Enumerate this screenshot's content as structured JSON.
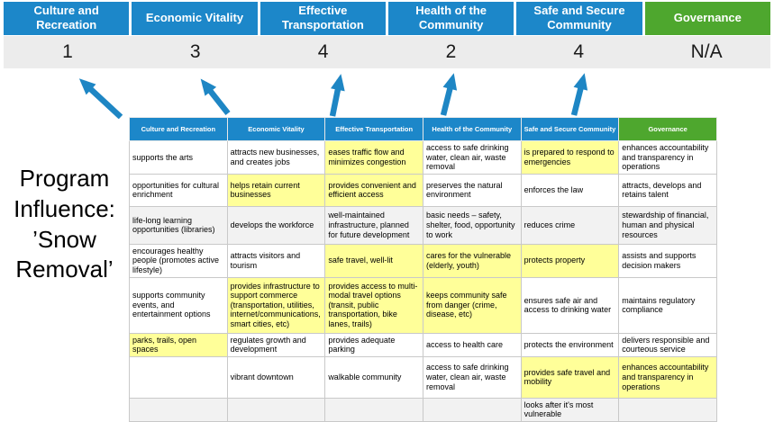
{
  "title": "Program Influence: ’Snow Removal’",
  "colors": {
    "header_blue": "#1c87c9",
    "header_green": "#4ea72e",
    "highlight_yellow": "#ffff99",
    "score_band_gray": "#ececec",
    "arrow_blue": "#1e86c4"
  },
  "scoreboard": {
    "columns": [
      {
        "label": "Culture and Recreation",
        "score": "1",
        "accent": "blue"
      },
      {
        "label": "Economic Vitality",
        "score": "3",
        "accent": "blue"
      },
      {
        "label": "Effective Transportation",
        "score": "4",
        "accent": "blue"
      },
      {
        "label": "Health of the Community",
        "score": "2",
        "accent": "blue"
      },
      {
        "label": "Safe and Secure Community",
        "score": "4",
        "accent": "blue"
      },
      {
        "label": "Governance",
        "score": "N/A",
        "accent": "green"
      }
    ]
  },
  "matrix": {
    "headers": [
      {
        "label": "Culture and Recreation",
        "accent": "blue"
      },
      {
        "label": "Economic Vitality",
        "accent": "blue"
      },
      {
        "label": "Effective Transportation",
        "accent": "blue"
      },
      {
        "label": "Health of the Community",
        "accent": "blue"
      },
      {
        "label": "Safe and Secure Community",
        "accent": "blue"
      },
      {
        "label": "Governance",
        "accent": "green"
      }
    ],
    "rows": [
      {
        "shade": false,
        "cells": [
          {
            "text": "supports the arts",
            "highlight": false
          },
          {
            "text": "attracts new businesses, and creates jobs",
            "highlight": false
          },
          {
            "text": "eases traffic flow and minimizes congestion",
            "highlight": true
          },
          {
            "text": "access to safe drinking water, clean air, waste removal",
            "highlight": false
          },
          {
            "text": "is prepared to respond to emergencies",
            "highlight": true
          },
          {
            "text": "enhances accountability and transparency in operations",
            "highlight": false
          }
        ]
      },
      {
        "shade": false,
        "cells": [
          {
            "text": "opportunities for cultural enrichment",
            "highlight": false
          },
          {
            "text": "helps retain current businesses",
            "highlight": true
          },
          {
            "text": "provides convenient and efficient access",
            "highlight": true
          },
          {
            "text": "preserves the natural environment",
            "highlight": false
          },
          {
            "text": "enforces the law",
            "highlight": false
          },
          {
            "text": "attracts, develops and retains talent",
            "highlight": false
          }
        ]
      },
      {
        "shade": true,
        "cells": [
          {
            "text": "life-long learning opportunities (libraries)",
            "highlight": false
          },
          {
            "text": "develops the workforce",
            "highlight": false
          },
          {
            "text": "well-maintained infrastructure, planned for future development",
            "highlight": false
          },
          {
            "text": "basic needs – safety, shelter, food, opportunity to work",
            "highlight": true
          },
          {
            "text": "reduces crime",
            "highlight": false
          },
          {
            "text": "stewardship of financial, human and physical resources",
            "highlight": false
          }
        ]
      },
      {
        "shade": false,
        "cells": [
          {
            "text": "encourages healthy people (promotes active lifestyle)",
            "highlight": false
          },
          {
            "text": "attracts visitors and tourism",
            "highlight": false
          },
          {
            "text": "safe travel, well-lit",
            "highlight": true
          },
          {
            "text": "cares for the vulnerable (elderly, youth)",
            "highlight": true
          },
          {
            "text": "protects property",
            "highlight": true
          },
          {
            "text": "assists and supports decision makers",
            "highlight": false
          }
        ]
      },
      {
        "shade": false,
        "cells": [
          {
            "text": "supports community events, and entertainment options",
            "highlight": false
          },
          {
            "text": "provides infrastructure to support commerce (transportation, utilities, internet/communications, smart cities, etc)",
            "highlight": true
          },
          {
            "text": "provides access to multi-modal travel options (transit, public transportation, bike lanes, trails)",
            "highlight": true
          },
          {
            "text": "keeps community safe from danger (crime, disease, etc)",
            "highlight": true
          },
          {
            "text": "ensures safe air and access to drinking water",
            "highlight": false
          },
          {
            "text": "maintains regulatory compliance",
            "highlight": false
          }
        ]
      },
      {
        "shade": false,
        "cells": [
          {
            "text": "parks, trails, open spaces",
            "highlight": true
          },
          {
            "text": "regulates growth and development",
            "highlight": false
          },
          {
            "text": "provides adequate parking",
            "highlight": false
          },
          {
            "text": "access to health care",
            "highlight": false
          },
          {
            "text": "protects the environment",
            "highlight": false
          },
          {
            "text": "delivers responsible and courteous service",
            "highlight": false
          }
        ]
      },
      {
        "shade": false,
        "cells": [
          {
            "text": "",
            "highlight": false
          },
          {
            "text": "vibrant downtown",
            "highlight": false
          },
          {
            "text": "walkable community",
            "highlight": false
          },
          {
            "text": "access to safe drinking water, clean air, waste removal",
            "highlight": false
          },
          {
            "text": "provides safe travel and mobility",
            "highlight": true
          },
          {
            "text": "enhances accountability and transparency in operations",
            "highlight": true
          }
        ]
      },
      {
        "shade": true,
        "cells": [
          {
            "text": "",
            "highlight": false
          },
          {
            "text": "",
            "highlight": false
          },
          {
            "text": "",
            "highlight": false
          },
          {
            "text": "",
            "highlight": false
          },
          {
            "text": "looks after it's most vulnerable",
            "highlight": true
          },
          {
            "text": "",
            "highlight": false
          }
        ]
      }
    ]
  }
}
